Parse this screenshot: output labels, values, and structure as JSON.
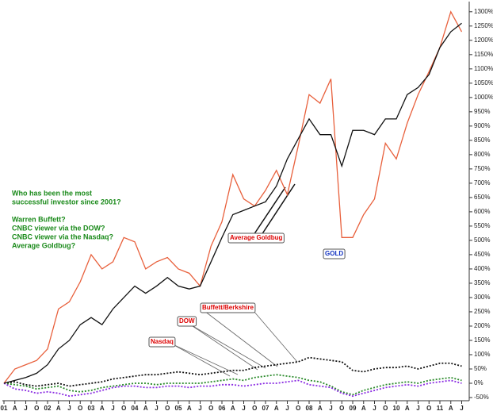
{
  "chart_data": {
    "type": "line",
    "categories": [
      "01",
      "A",
      "J",
      "O",
      "02",
      "A",
      "J",
      "O",
      "03",
      "A",
      "J",
      "O",
      "04",
      "A",
      "J",
      "O",
      "05",
      "A",
      "J",
      "O",
      "06",
      "A",
      "J",
      "O",
      "07",
      "A",
      "J",
      "O",
      "08",
      "A",
      "J",
      "O",
      "09",
      "A",
      "J",
      "O",
      "10",
      "A",
      "J",
      "O",
      "11",
      "A",
      "J"
    ],
    "series": [
      {
        "name": "GOLD",
        "color": "#e8603c",
        "dash": false,
        "values": [
          0,
          50,
          65,
          80,
          120,
          260,
          285,
          355,
          450,
          400,
          425,
          510,
          495,
          400,
          425,
          440,
          400,
          385,
          340,
          480,
          565,
          730,
          645,
          620,
          675,
          745,
          660,
          830,
          1010,
          980,
          1065,
          510,
          510,
          590,
          645,
          840,
          785,
          910,
          1010,
          1090,
          1175,
          1300,
          1230
        ]
      },
      {
        "name": "Average Goldbug",
        "color": "#111111",
        "dash": false,
        "values": [
          0,
          10,
          20,
          35,
          65,
          120,
          150,
          205,
          230,
          205,
          260,
          300,
          340,
          315,
          340,
          370,
          340,
          330,
          340,
          425,
          510,
          590,
          605,
          620,
          635,
          690,
          785,
          855,
          925,
          870,
          870,
          760,
          885,
          885,
          870,
          925,
          925,
          1010,
          1035,
          1080,
          1175,
          1230,
          1260
        ]
      },
      {
        "name": "Buffett/Berkshire",
        "color": "#111111",
        "dash": true,
        "values": [
          0,
          5,
          -5,
          -10,
          -5,
          0,
          -10,
          -5,
          0,
          5,
          15,
          20,
          25,
          30,
          30,
          35,
          40,
          35,
          30,
          35,
          40,
          45,
          45,
          55,
          60,
          65,
          70,
          75,
          90,
          85,
          80,
          75,
          45,
          40,
          50,
          55,
          55,
          60,
          50,
          60,
          70,
          70,
          60
        ]
      },
      {
        "name": "DOW",
        "color": "#2a8a2a",
        "dash": true,
        "values": [
          0,
          -5,
          -10,
          -20,
          -15,
          -10,
          -25,
          -30,
          -25,
          -15,
          -10,
          -5,
          0,
          0,
          -5,
          0,
          0,
          0,
          0,
          5,
          10,
          15,
          10,
          20,
          25,
          30,
          25,
          20,
          10,
          5,
          -10,
          -30,
          -40,
          -25,
          -15,
          -5,
          0,
          5,
          0,
          10,
          15,
          20,
          10
        ]
      },
      {
        "name": "Nasdaq",
        "color": "#8a2be2",
        "dash": true,
        "values": [
          0,
          -20,
          -25,
          -35,
          -30,
          -35,
          -45,
          -40,
          -35,
          -25,
          -15,
          -10,
          -10,
          -15,
          -15,
          -10,
          -10,
          -15,
          -10,
          -10,
          -5,
          -5,
          -10,
          -5,
          0,
          0,
          5,
          10,
          -5,
          -10,
          -15,
          -35,
          -45,
          -35,
          -25,
          -15,
          -10,
          -5,
          -10,
          0,
          5,
          10,
          0
        ]
      }
    ],
    "ylim": [
      -50,
      1330
    ],
    "yticks": [
      {
        "value": -50,
        "label": "-50%"
      },
      {
        "value": 0,
        "label": "0%"
      },
      {
        "value": 50,
        "label": "50%"
      },
      {
        "value": 100,
        "label": "100%"
      },
      {
        "value": 150,
        "label": "150%"
      },
      {
        "value": 200,
        "label": "200%"
      },
      {
        "value": 250,
        "label": "250%"
      },
      {
        "value": 300,
        "label": "300%"
      },
      {
        "value": 350,
        "label": "350%"
      },
      {
        "value": 400,
        "label": "400%"
      },
      {
        "value": 450,
        "label": "450%"
      },
      {
        "value": 500,
        "label": "500%"
      },
      {
        "value": 550,
        "label": "550%"
      },
      {
        "value": 600,
        "label": "600%"
      },
      {
        "value": 650,
        "label": "650%"
      },
      {
        "value": 700,
        "label": "700%"
      },
      {
        "value": 750,
        "label": "750%"
      },
      {
        "value": 800,
        "label": "800%"
      },
      {
        "value": 850,
        "label": "850%"
      },
      {
        "value": 900,
        "label": "900%"
      },
      {
        "value": 950,
        "label": "950%"
      },
      {
        "value": 1000,
        "label": "1000%"
      },
      {
        "value": 1050,
        "label": "1050%"
      },
      {
        "value": 1100,
        "label": "1100%"
      },
      {
        "value": 1150,
        "label": "1150%"
      },
      {
        "value": 1200,
        "label": "1200%"
      },
      {
        "value": 1250,
        "label": "1250%"
      },
      {
        "value": 1300,
        "label": "1300%"
      }
    ],
    "annotation": [
      "Who has been the most",
      "successful investor since 2001?",
      "",
      "Warren Buffett?",
      "CNBC viewer via the DOW?",
      "CNBC viewer via the Nasdaq?",
      "Average Goldbug?"
    ]
  }
}
